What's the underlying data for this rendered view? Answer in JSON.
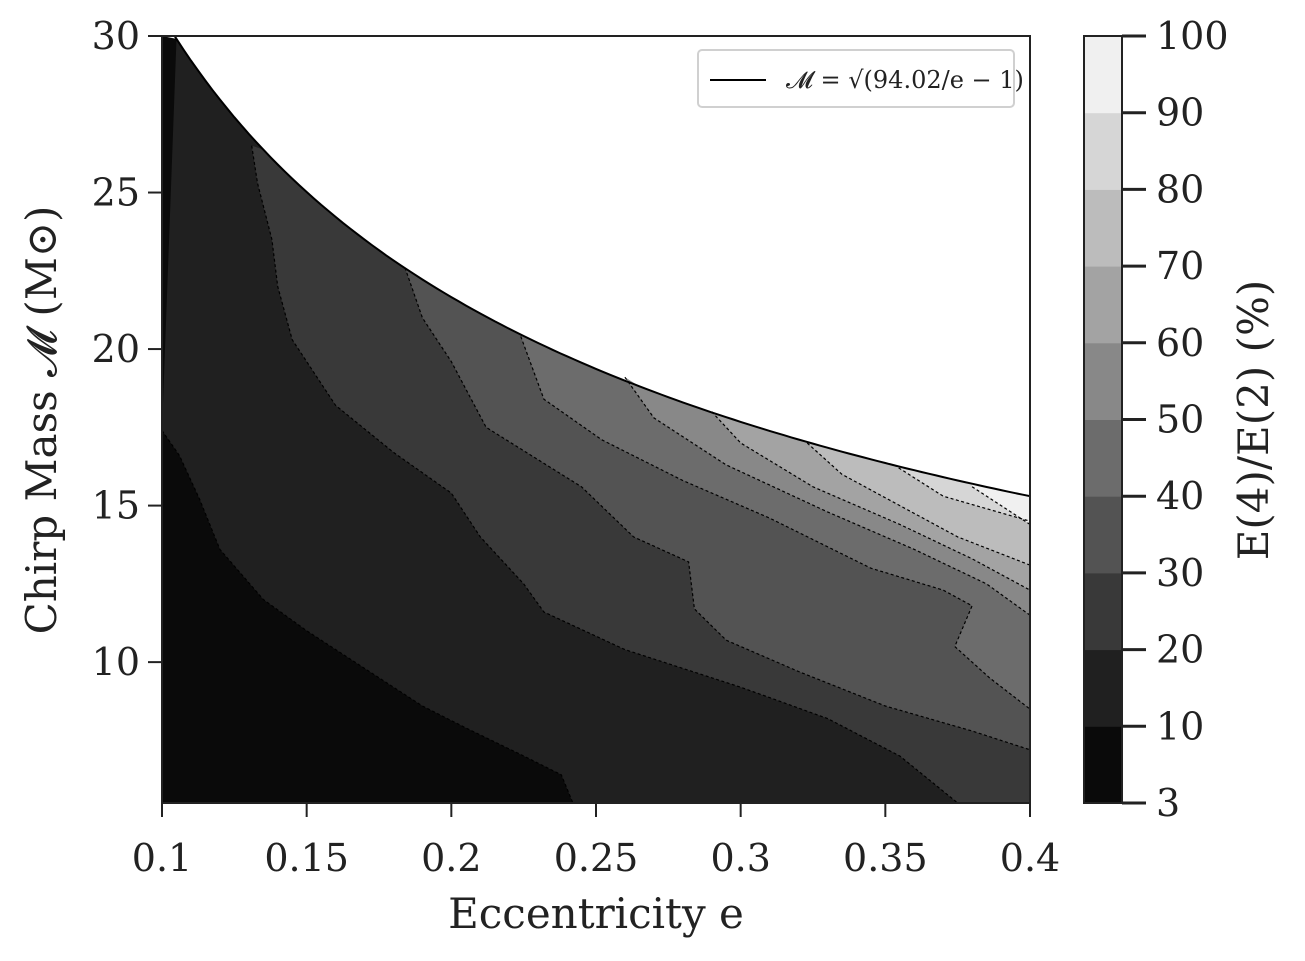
{
  "chart_data": {
    "type": "heatmap",
    "subtype": "filled-contour",
    "title": "",
    "xlabel": "Eccentricity e",
    "ylabel": "Chirp Mass 𝓜 (M⊙)",
    "xlim": [
      0.1,
      0.4
    ],
    "ylim": [
      5.5,
      30
    ],
    "xticks": [
      "0.1",
      "0.15",
      "0.2",
      "0.25",
      "0.3",
      "0.35",
      "0.4"
    ],
    "yticks": [
      "10",
      "15",
      "20",
      "25",
      "30"
    ],
    "boundary": {
      "label": "𝓜 = √(94.02/e − 1)",
      "formula_constant": 94.02,
      "color": "#000000"
    },
    "colorbar": {
      "label": "E(4)/E(2) (%)",
      "levels": [
        3,
        10,
        20,
        30,
        40,
        50,
        60,
        70,
        80,
        90,
        100
      ],
      "tick_labels": [
        "3",
        "10",
        "20",
        "30",
        "40",
        "50",
        "60",
        "70",
        "80",
        "90",
        "100"
      ],
      "colors": [
        "#0a0a0a",
        "#202020",
        "#393939",
        "#535353",
        "#6c6c6c",
        "#888888",
        "#a3a3a3",
        "#bcbcbc",
        "#d6d6d6",
        "#f0f0f0"
      ]
    },
    "contours": [
      {
        "level": 10,
        "points": [
          [
            0.1,
            17.4
          ],
          [
            0.106,
            16.6
          ],
          [
            0.113,
            15.2
          ],
          [
            0.12,
            13.6
          ],
          [
            0.135,
            12.0
          ],
          [
            0.15,
            11.0
          ],
          [
            0.17,
            9.8
          ],
          [
            0.19,
            8.6
          ],
          [
            0.205,
            7.9
          ],
          [
            0.225,
            7.0
          ],
          [
            0.238,
            6.4
          ],
          [
            0.242,
            5.5
          ]
        ]
      },
      {
        "level": 20,
        "points": [
          [
            0.131,
            26.5
          ],
          [
            0.133,
            25.3
          ],
          [
            0.138,
            23.5
          ],
          [
            0.14,
            22.0
          ],
          [
            0.145,
            20.3
          ],
          [
            0.16,
            18.2
          ],
          [
            0.18,
            16.7
          ],
          [
            0.2,
            15.4
          ],
          [
            0.21,
            14.0
          ],
          [
            0.225,
            12.5
          ],
          [
            0.232,
            11.6
          ],
          [
            0.26,
            10.4
          ],
          [
            0.3,
            9.2
          ],
          [
            0.33,
            8.2
          ],
          [
            0.355,
            7.0
          ],
          [
            0.375,
            5.5
          ]
        ]
      },
      {
        "level": 30,
        "points": [
          [
            0.184,
            22.6
          ],
          [
            0.19,
            21.0
          ],
          [
            0.2,
            19.6
          ],
          [
            0.212,
            17.5
          ],
          [
            0.245,
            15.6
          ],
          [
            0.263,
            14.0
          ],
          [
            0.282,
            13.2
          ],
          [
            0.284,
            11.7
          ],
          [
            0.295,
            10.7
          ],
          [
            0.32,
            9.7
          ],
          [
            0.35,
            8.6
          ],
          [
            0.38,
            7.8
          ],
          [
            0.4,
            7.2
          ]
        ]
      },
      {
        "level": 40,
        "points": [
          [
            0.224,
            20.4
          ],
          [
            0.232,
            18.4
          ],
          [
            0.252,
            17.1
          ],
          [
            0.28,
            15.8
          ],
          [
            0.31,
            14.6
          ],
          [
            0.345,
            13.0
          ],
          [
            0.37,
            12.3
          ],
          [
            0.38,
            11.8
          ],
          [
            0.374,
            10.5
          ],
          [
            0.386,
            9.5
          ],
          [
            0.4,
            8.5
          ]
        ]
      },
      {
        "level": 50,
        "points": [
          [
            0.26,
            19.1
          ],
          [
            0.27,
            17.8
          ],
          [
            0.295,
            16.3
          ],
          [
            0.33,
            14.8
          ],
          [
            0.36,
            13.6
          ],
          [
            0.385,
            12.5
          ],
          [
            0.4,
            11.5
          ]
        ]
      },
      {
        "level": 60,
        "points": [
          [
            0.29,
            18.0
          ],
          [
            0.3,
            17.0
          ],
          [
            0.325,
            15.6
          ],
          [
            0.355,
            14.4
          ],
          [
            0.38,
            13.3
          ],
          [
            0.4,
            12.3
          ]
        ]
      },
      {
        "level": 70,
        "points": [
          [
            0.323,
            17.0
          ],
          [
            0.335,
            16.0
          ],
          [
            0.355,
            15.0
          ],
          [
            0.375,
            14.0
          ],
          [
            0.4,
            13.1
          ]
        ]
      },
      {
        "level": 80,
        "points": [
          [
            0.353,
            16.3
          ],
          [
            0.37,
            15.3
          ],
          [
            0.4,
            14.5
          ]
        ]
      },
      {
        "level": 90,
        "points": [
          [
            0.38,
            15.6
          ],
          [
            0.4,
            14.4
          ]
        ]
      }
    ]
  }
}
